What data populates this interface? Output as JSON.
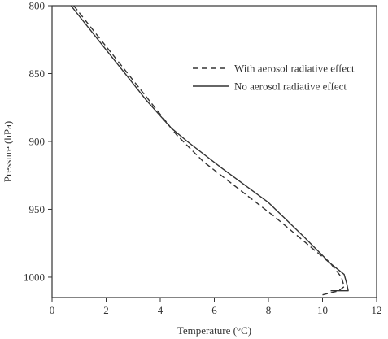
{
  "chart_data": {
    "type": "line",
    "title": "",
    "xlabel": "Temperature (°C)",
    "ylabel": "Pressure (hPa)",
    "xlim": [
      0,
      12
    ],
    "ylim": [
      800,
      1015
    ],
    "y_inverted": true,
    "grid": false,
    "legend_position": "top-right",
    "x_ticks": [
      0,
      2,
      4,
      6,
      8,
      10,
      12
    ],
    "x_tick_labels": [
      "0",
      "2",
      "4",
      "6",
      "8",
      "10",
      "12"
    ],
    "y_ticks": [
      800,
      850,
      900,
      950,
      1000
    ],
    "y_tick_labels": [
      "800",
      "850",
      "900",
      "950",
      "1000"
    ],
    "series": [
      {
        "name": "With aerosol radiative effect",
        "style": "dashed",
        "color": "#333333",
        "x": [
          0.8,
          1.6,
          2.6,
          3.6,
          4.6,
          5.6,
          6.9,
          8.2,
          9.4,
          10.3,
          10.7,
          10.8,
          10.6,
          10.0
        ],
        "y": [
          800,
          820,
          845,
          870,
          895,
          915,
          935,
          955,
          975,
          990,
          1000,
          1007,
          1010,
          1013
        ]
      },
      {
        "name": "No aerosol radiative effect",
        "style": "solid",
        "color": "#333333",
        "x": [
          0.7,
          1.5,
          2.5,
          3.5,
          4.4,
          5.0,
          6.3,
          8.0,
          9.3,
          10.3,
          10.8,
          10.9,
          10.95,
          10.3
        ],
        "y": [
          800,
          820,
          845,
          870,
          890,
          900,
          920,
          945,
          970,
          990,
          998,
          1005,
          1010,
          1010
        ]
      }
    ]
  }
}
